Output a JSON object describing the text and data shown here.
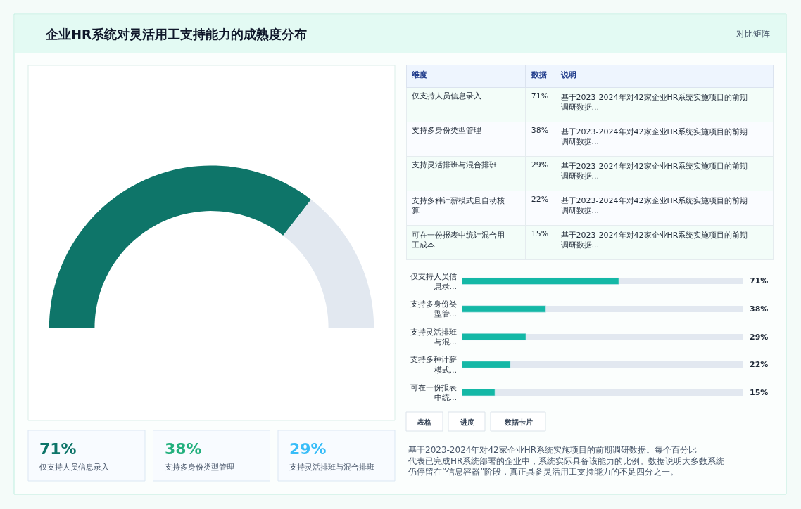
{
  "chart_data": [
    {
      "type": "donut",
      "title": "企业HR系统对灵活用工支持能力的成熟度分布",
      "annotations": [
        "对比矩阵"
      ],
      "categories": [
        null,
        null
      ],
      "values": [
        71,
        29
      ],
      "colors": [
        "#0e7569",
        "#e2e8f0"
      ]
    },
    {
      "type": "other",
      "categories": [
        "仅支持人员信息录入",
        "支持多身份类型管理",
        "支持灵活排班与混合排班",
        "支持多种计薪模式且自动核算",
        "可在一份报表中统计混合用工成本"
      ],
      "value_labels": [
        "71%",
        "38%",
        "29%",
        "22%",
        "15%"
      ],
      "annotations": [
        "维度",
        "数据",
        "说明",
        "基于2023-2024年对42家企业HR系统实施项目的前期调研数据...",
        "基于2023-2024年对42家企业HR系统实施项目的前期调研数据...",
        "基于2023-2024年对42家企业HR系统实施项目的前期调研数据...",
        "基于2023-2024年对42家企业HR系统实施项目的前期调研数据...",
        "基于2023-2024年对42家企业HR系统实施项目的前期调研数据..."
      ]
    },
    {
      "type": "bar",
      "orientation": "horizontal",
      "categories": [
        "仅支持人员信息录...",
        "支持多身份类型管...",
        "支持灵活排班与混...",
        "支持多种计薪模式...",
        "可在一份报表中统..."
      ],
      "values": [
        71,
        38,
        29,
        22,
        15
      ],
      "value_labels": [
        "71%",
        "38%",
        "29%",
        "22%",
        "15%"
      ],
      "xlim": [
        0,
        127
      ],
      "tick_labels": "y",
      "grid": "y",
      "color": "#14b8a6"
    },
    {
      "type": "other",
      "categories": [
        "仅支持人员信息录入",
        "支持多身份类型管理",
        "支持灵活排班与混合排班"
      ],
      "value_labels": [
        "71%",
        "38%",
        "29%"
      ],
      "colors": [
        "#0e7569",
        "#22b07d",
        "#38bdf8"
      ],
      "annotations": [
        "表格",
        "进度",
        "数据卡片",
        "基于2023-2024年对42家企业HR系统实施项目的前期调研数据。每个百分比代表已完成HR系统部署的企业中，系统实际具备该能力的比例。数据说明大多数系统仍停留在“信息容器”阶段，真正具备灵活用工支持能力的不足四分之一。"
      ]
    }
  ]
}
